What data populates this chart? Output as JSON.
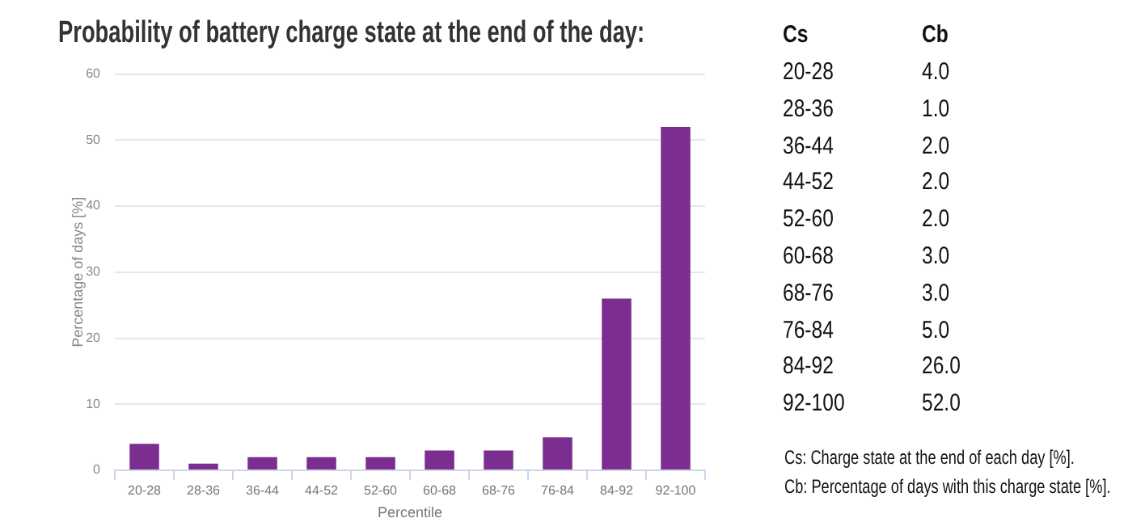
{
  "chart_data": [
    {
      "type": "bar",
      "title": "Probability of battery charge state at the end of the day:",
      "categories": [
        "20-28",
        "28-36",
        "36-44",
        "44-52",
        "52-60",
        "60-68",
        "68-76",
        "76-84",
        "84-92",
        "92-100"
      ],
      "values": [
        4,
        1,
        2,
        2,
        2,
        3,
        3,
        5,
        26,
        52
      ],
      "color": "#7b2d90",
      "xlabel": "Percentile",
      "ylabel": "Percentage of days [%]",
      "ylim": [
        0,
        60
      ],
      "yticks": [
        0,
        10,
        20,
        30,
        40,
        50,
        60
      ],
      "grid": "y"
    },
    {
      "type": "other",
      "categories": [
        "20-28",
        "28-36",
        "36-44",
        "44-52",
        "52-60",
        "60-68",
        "68-76",
        "76-84",
        "84-92",
        "92-100"
      ],
      "value_labels": [
        "4.0",
        "1.0",
        "2.0",
        "2.0",
        "2.0",
        "3.0",
        "3.0",
        "5.0",
        "26.0",
        "52.0"
      ],
      "annotations": [
        "Cs",
        "Cb",
        "Cs: Charge state at the end of each day [%].",
        "Cb: Percentage of days with this charge state [%]."
      ]
    }
  ]
}
